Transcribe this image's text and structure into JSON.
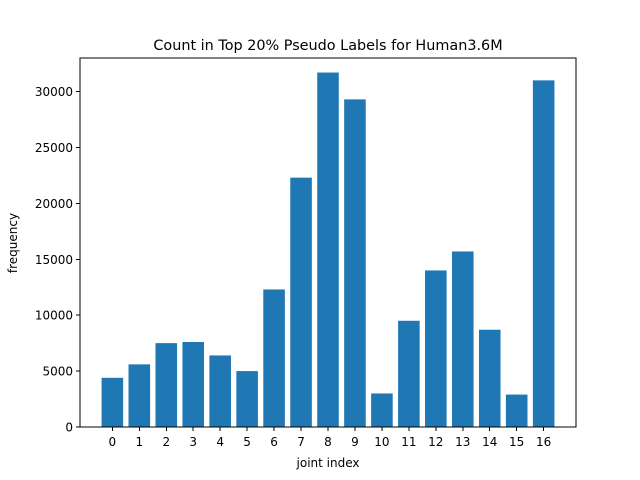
{
  "chart_data": {
    "type": "bar",
    "title": "Count in Top 20% Pseudo Labels for Human3.6M",
    "xlabel": "joint index",
    "ylabel": "frequency",
    "categories": [
      "0",
      "1",
      "2",
      "3",
      "4",
      "5",
      "6",
      "7",
      "8",
      "9",
      "10",
      "11",
      "12",
      "13",
      "14",
      "15",
      "16"
    ],
    "values": [
      4400,
      5600,
      7500,
      7600,
      6400,
      5000,
      12300,
      22300,
      31700,
      29300,
      3000,
      9500,
      14000,
      15700,
      8700,
      2900,
      31000
    ],
    "ylim": [
      0,
      33000
    ],
    "yticks": [
      0,
      5000,
      10000,
      15000,
      20000,
      25000,
      30000
    ],
    "bar_color": "#1f77b4",
    "grid": false,
    "legend": "none"
  }
}
